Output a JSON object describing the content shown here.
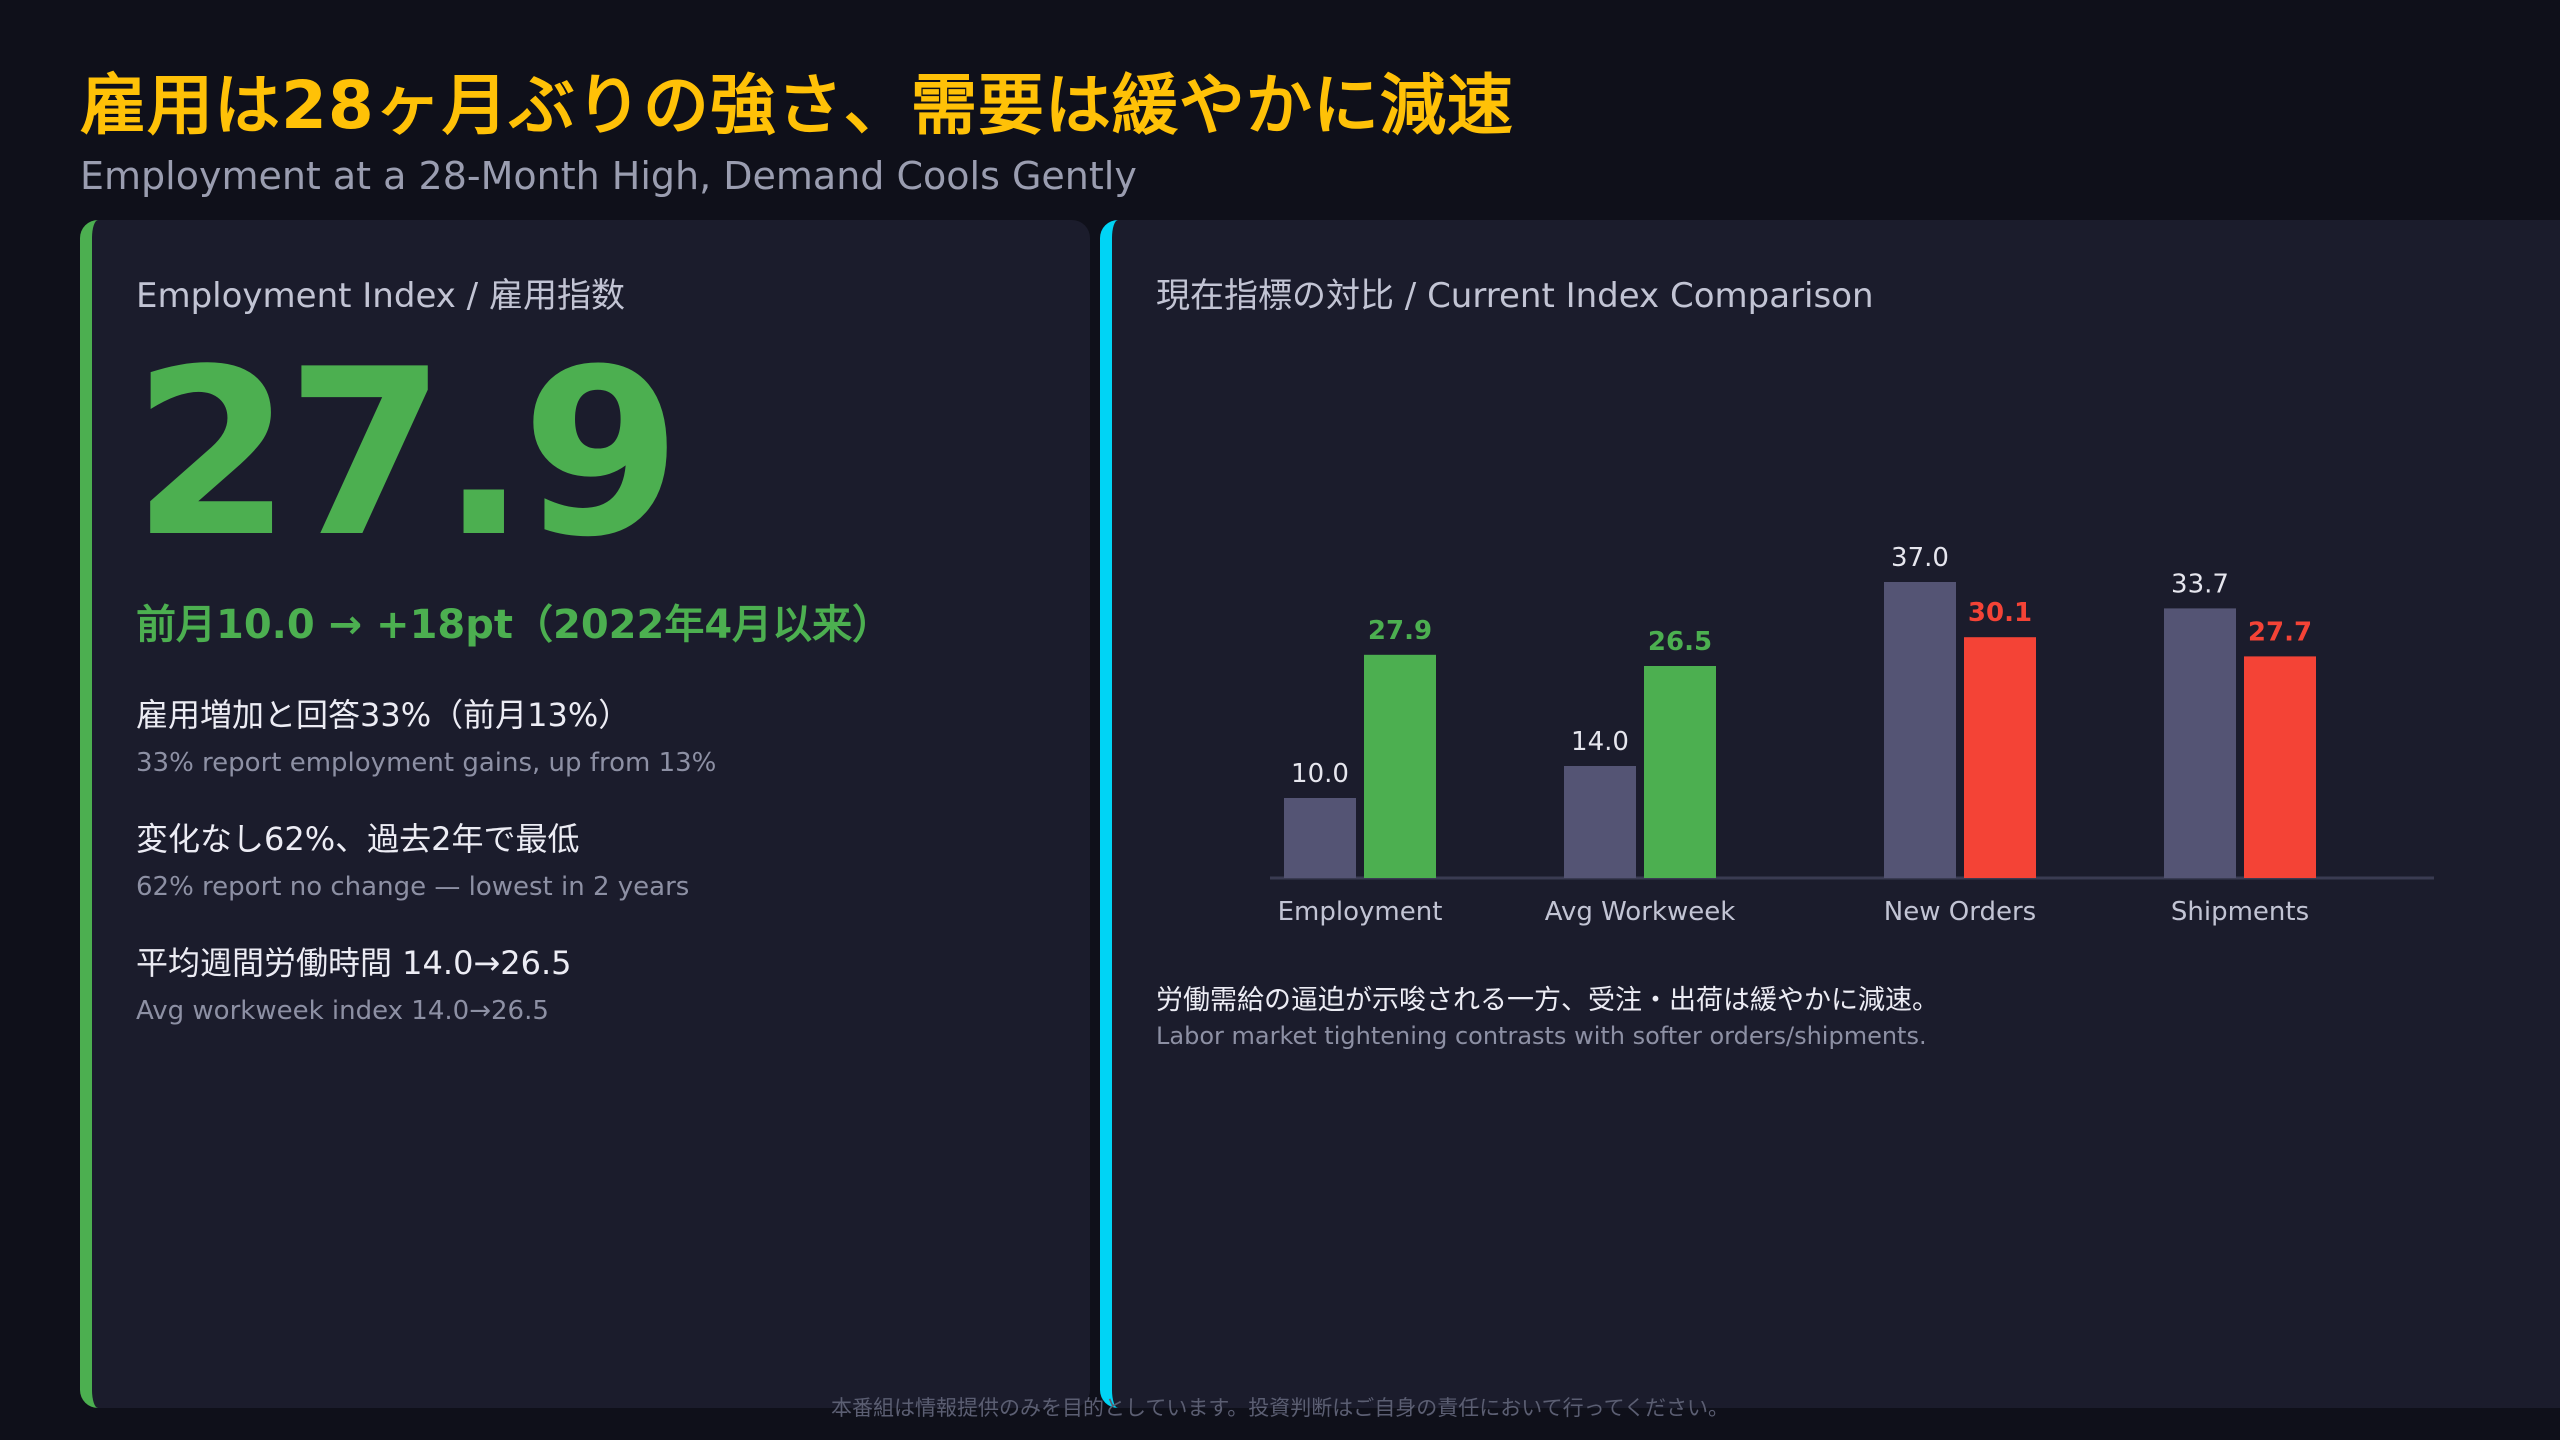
{
  "header": {
    "title": "雇用は28ヶ月ぶりの強さ、需要は緩やかに減速",
    "subtitle": "Employment at a 28-Month High, Demand Cools Gently"
  },
  "left_panel": {
    "label": "Employment Index / 雇用指数",
    "value": "27.9",
    "change": "前月10.0 → +18pt（2022年4月以来）",
    "bullets": [
      {
        "jp": "雇用増加と回答33%（前月13%）",
        "en": "33% report employment gains, up from 13%"
      },
      {
        "jp": "変化なし62%、過去2年で最低",
        "en": "62% report no change — lowest in 2 years"
      },
      {
        "jp": "平均週間労働時間 14.0→26.5",
        "en": "Avg workweek index 14.0→26.5"
      }
    ]
  },
  "right_panel": {
    "label": "現在指標の対比 / Current Index Comparison",
    "note_jp": "労働需給の逼迫が示唆される一方、受注・出荷は緩やかに減速。",
    "note_en": "Labor market tightening contrasts with softer orders/shipments."
  },
  "chart_data": {
    "type": "bar",
    "categories": [
      "Employment",
      "Avg Workweek",
      "New Orders",
      "Shipments"
    ],
    "series": [
      {
        "values": [
          10.0,
          14.0,
          37.0,
          33.7
        ]
      },
      {
        "values": [
          27.9,
          26.5,
          30.1,
          27.7
        ]
      }
    ],
    "value_labels": [
      [
        "10.0",
        "14.0",
        "37.0",
        "33.7"
      ],
      [
        "27.9",
        "26.5",
        "30.1",
        "27.7"
      ]
    ],
    "current_colors": [
      "#4caf50",
      "#4caf50",
      "#f44336",
      "#f44336"
    ],
    "previous_color": "#545474",
    "ylim": [
      0,
      40
    ]
  },
  "footer": {
    "disclaimer": "本番組は情報提供のみを目的としています。投資判断はご自身の責任において行ってください。"
  }
}
